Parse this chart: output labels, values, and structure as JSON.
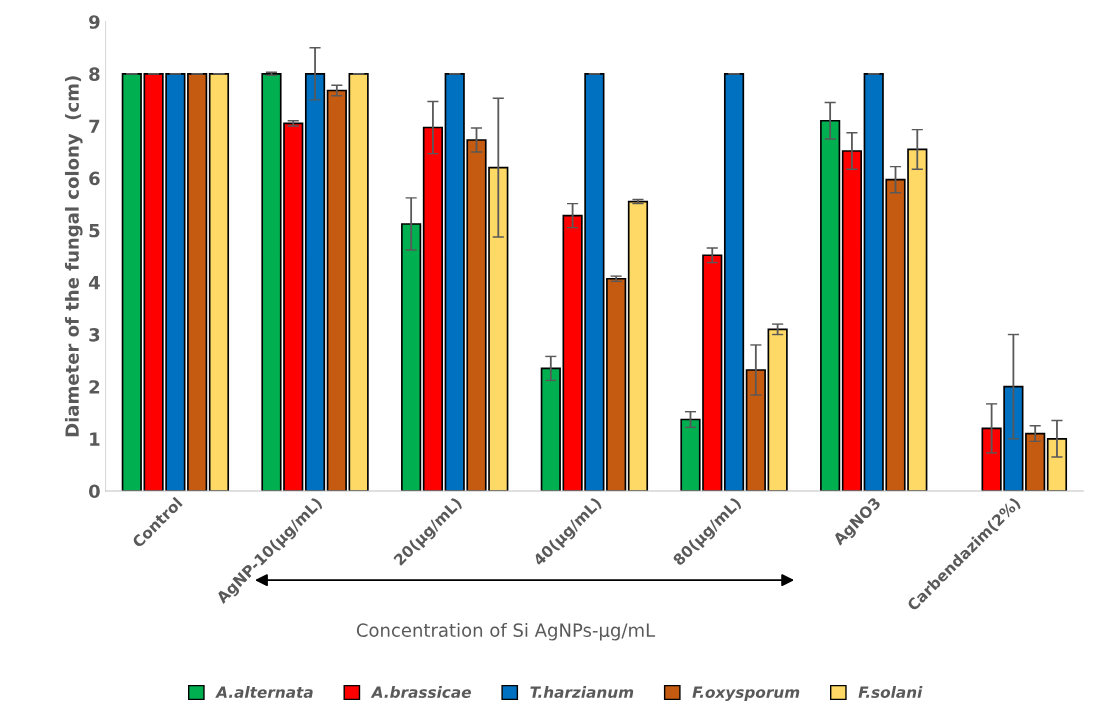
{
  "chart_data": {
    "type": "bar",
    "ylabel": "Diameter of the fungal colony  (cm)",
    "categories": [
      "Control",
      "AgNP-10(µg/mL)",
      "20(µg/mL)",
      "40(µg/mL)",
      "80(µg/mL)",
      "AgNO3",
      "Carbendazim(2%)"
    ],
    "series": [
      {
        "name": "A.alternata",
        "color": "#00b050",
        "values": [
          8,
          8.0,
          5.12,
          2.35,
          1.37,
          7.1,
          null
        ],
        "errors": [
          0,
          0.03,
          0.5,
          0.23,
          0.15,
          0.35,
          null
        ]
      },
      {
        "name": "A.brassicae",
        "color": "#ff0000",
        "values": [
          8,
          7.05,
          6.97,
          5.28,
          4.52,
          6.52,
          1.2
        ],
        "errors": [
          0,
          0.05,
          0.5,
          0.23,
          0.14,
          0.35,
          0.47
        ]
      },
      {
        "name": "T.harzianum",
        "color": "#0070c0",
        "values": [
          8,
          8,
          8,
          8,
          8,
          8,
          2.0
        ],
        "errors": [
          0,
          0.5,
          0,
          0,
          0,
          0,
          1.0
        ]
      },
      {
        "name": "F.oxysporum",
        "color": "#c55a11",
        "values": [
          8,
          7.68,
          6.73,
          4.07,
          2.32,
          5.97,
          1.1
        ],
        "errors": [
          0,
          0.1,
          0.23,
          0.05,
          0.48,
          0.25,
          0.15
        ]
      },
      {
        "name": "F.solani",
        "color": "#ffd966",
        "values": [
          8,
          8,
          6.2,
          5.55,
          3.1,
          6.55,
          1.0
        ],
        "errors": [
          0,
          0,
          1.33,
          0.04,
          0.1,
          0.38,
          0.35
        ]
      }
    ],
    "annotations": [
      "Concentration of Si AgNPs-µg/mL"
    ],
    "ylim": [
      0,
      9
    ],
    "yticks": [
      0,
      1,
      2,
      3,
      4,
      5,
      6,
      7,
      8,
      9
    ],
    "grid": false,
    "legend": "bottom"
  }
}
